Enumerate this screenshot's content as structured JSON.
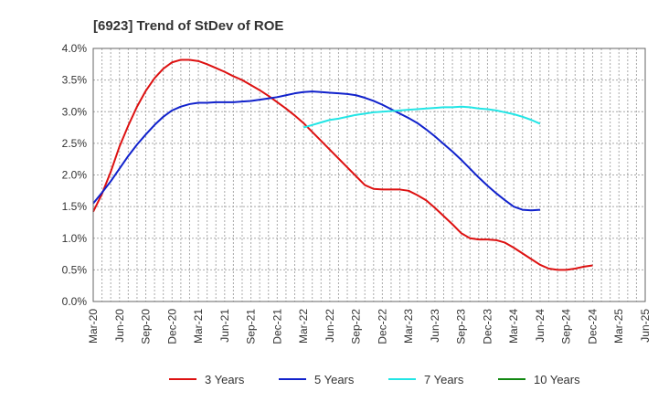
{
  "chart_data": {
    "type": "line",
    "title": "[6923]  Trend of StDev of ROE",
    "xlabel": "",
    "ylabel": "",
    "x_ticks": [
      "Mar-20",
      "Jun-20",
      "Sep-20",
      "Dec-20",
      "Mar-21",
      "Jun-21",
      "Sep-21",
      "Dec-21",
      "Mar-22",
      "Jun-22",
      "Sep-22",
      "Dec-22",
      "Mar-23",
      "Jun-23",
      "Sep-23",
      "Dec-23",
      "Mar-24",
      "Jun-24",
      "Sep-24",
      "Dec-24",
      "Mar-25",
      "Jun-25"
    ],
    "y_ticks": [
      "0.0%",
      "0.5%",
      "1.0%",
      "1.5%",
      "2.0%",
      "2.5%",
      "3.0%",
      "3.5%",
      "4.0%"
    ],
    "ylim": [
      0,
      4.0
    ],
    "grid": true,
    "legend_position": "bottom",
    "series": [
      {
        "name": "3 Years",
        "color": "#dd1111",
        "points": [
          [
            "Mar-20",
            1.42
          ],
          [
            "Apr-20",
            1.7
          ],
          [
            "May-20",
            2.05
          ],
          [
            "Jun-20",
            2.45
          ],
          [
            "Jul-20",
            2.78
          ],
          [
            "Aug-20",
            3.08
          ],
          [
            "Sep-20",
            3.33
          ],
          [
            "Oct-20",
            3.53
          ],
          [
            "Nov-20",
            3.68
          ],
          [
            "Dec-20",
            3.78
          ],
          [
            "Jan-21",
            3.82
          ],
          [
            "Feb-21",
            3.82
          ],
          [
            "Mar-21",
            3.8
          ],
          [
            "Apr-21",
            3.75
          ],
          [
            "May-21",
            3.69
          ],
          [
            "Jun-21",
            3.63
          ],
          [
            "Jul-21",
            3.56
          ],
          [
            "Aug-21",
            3.5
          ],
          [
            "Sep-21",
            3.42
          ],
          [
            "Oct-21",
            3.34
          ],
          [
            "Nov-21",
            3.25
          ],
          [
            "Dec-21",
            3.15
          ],
          [
            "Jan-22",
            3.05
          ],
          [
            "Feb-22",
            2.94
          ],
          [
            "Mar-22",
            2.82
          ],
          [
            "Apr-22",
            2.68
          ],
          [
            "May-22",
            2.54
          ],
          [
            "Jun-22",
            2.4
          ],
          [
            "Jul-22",
            2.26
          ],
          [
            "Aug-22",
            2.12
          ],
          [
            "Sep-22",
            1.98
          ],
          [
            "Oct-22",
            1.84
          ],
          [
            "Nov-22",
            1.78
          ],
          [
            "Dec-22",
            1.77
          ],
          [
            "Jan-23",
            1.77
          ],
          [
            "Feb-23",
            1.77
          ],
          [
            "Mar-23",
            1.75
          ],
          [
            "Apr-23",
            1.68
          ],
          [
            "May-23",
            1.6
          ],
          [
            "Jun-23",
            1.48
          ],
          [
            "Jul-23",
            1.35
          ],
          [
            "Aug-23",
            1.22
          ],
          [
            "Sep-23",
            1.08
          ],
          [
            "Oct-23",
            1.0
          ],
          [
            "Nov-23",
            0.98
          ],
          [
            "Dec-23",
            0.98
          ],
          [
            "Jan-24",
            0.97
          ],
          [
            "Feb-24",
            0.93
          ],
          [
            "Mar-24",
            0.85
          ],
          [
            "Apr-24",
            0.76
          ],
          [
            "May-24",
            0.67
          ],
          [
            "Jun-24",
            0.58
          ],
          [
            "Jul-24",
            0.52
          ],
          [
            "Aug-24",
            0.5
          ],
          [
            "Sep-24",
            0.5
          ],
          [
            "Oct-24",
            0.52
          ],
          [
            "Nov-24",
            0.55
          ],
          [
            "Dec-24",
            0.57
          ]
        ]
      },
      {
        "name": "5 Years",
        "color": "#1122cc",
        "points": [
          [
            "Mar-20",
            1.55
          ],
          [
            "Apr-20",
            1.72
          ],
          [
            "May-20",
            1.9
          ],
          [
            "Jun-20",
            2.1
          ],
          [
            "Jul-20",
            2.3
          ],
          [
            "Aug-20",
            2.48
          ],
          [
            "Sep-20",
            2.64
          ],
          [
            "Oct-20",
            2.79
          ],
          [
            "Nov-20",
            2.92
          ],
          [
            "Dec-20",
            3.02
          ],
          [
            "Jan-21",
            3.08
          ],
          [
            "Feb-21",
            3.12
          ],
          [
            "Mar-21",
            3.14
          ],
          [
            "Apr-21",
            3.14
          ],
          [
            "May-21",
            3.15
          ],
          [
            "Jun-21",
            3.15
          ],
          [
            "Jul-21",
            3.15
          ],
          [
            "Aug-21",
            3.16
          ],
          [
            "Sep-21",
            3.17
          ],
          [
            "Oct-21",
            3.19
          ],
          [
            "Nov-21",
            3.21
          ],
          [
            "Dec-21",
            3.23
          ],
          [
            "Jan-22",
            3.26
          ],
          [
            "Feb-22",
            3.29
          ],
          [
            "Mar-22",
            3.31
          ],
          [
            "Apr-22",
            3.32
          ],
          [
            "May-22",
            3.31
          ],
          [
            "Jun-22",
            3.3
          ],
          [
            "Jul-22",
            3.29
          ],
          [
            "Aug-22",
            3.28
          ],
          [
            "Sep-22",
            3.26
          ],
          [
            "Oct-22",
            3.22
          ],
          [
            "Nov-22",
            3.17
          ],
          [
            "Dec-22",
            3.11
          ],
          [
            "Jan-23",
            3.04
          ],
          [
            "Feb-23",
            2.97
          ],
          [
            "Mar-23",
            2.9
          ],
          [
            "Apr-23",
            2.82
          ],
          [
            "May-23",
            2.72
          ],
          [
            "Jun-23",
            2.61
          ],
          [
            "Jul-23",
            2.49
          ],
          [
            "Aug-23",
            2.37
          ],
          [
            "Sep-23",
            2.24
          ],
          [
            "Oct-23",
            2.1
          ],
          [
            "Nov-23",
            1.96
          ],
          [
            "Dec-23",
            1.83
          ],
          [
            "Jan-24",
            1.71
          ],
          [
            "Feb-24",
            1.6
          ],
          [
            "Mar-24",
            1.5
          ],
          [
            "Apr-24",
            1.45
          ],
          [
            "May-24",
            1.44
          ],
          [
            "Jun-24",
            1.45
          ]
        ]
      },
      {
        "name": "7 Years",
        "color": "#22e5e5",
        "points": [
          [
            "Mar-22",
            2.75
          ],
          [
            "Apr-22",
            2.79
          ],
          [
            "May-22",
            2.83
          ],
          [
            "Jun-22",
            2.87
          ],
          [
            "Jul-22",
            2.89
          ],
          [
            "Aug-22",
            2.92
          ],
          [
            "Sep-22",
            2.95
          ],
          [
            "Oct-22",
            2.97
          ],
          [
            "Nov-22",
            2.99
          ],
          [
            "Dec-22",
            3.0
          ],
          [
            "Jan-23",
            3.01
          ],
          [
            "Feb-23",
            3.02
          ],
          [
            "Mar-23",
            3.03
          ],
          [
            "Apr-23",
            3.04
          ],
          [
            "May-23",
            3.05
          ],
          [
            "Jun-23",
            3.06
          ],
          [
            "Jul-23",
            3.07
          ],
          [
            "Aug-23",
            3.07
          ],
          [
            "Sep-23",
            3.08
          ],
          [
            "Oct-23",
            3.07
          ],
          [
            "Nov-23",
            3.05
          ],
          [
            "Dec-23",
            3.04
          ],
          [
            "Jan-24",
            3.02
          ],
          [
            "Feb-24",
            2.99
          ],
          [
            "Mar-24",
            2.96
          ],
          [
            "Apr-24",
            2.92
          ],
          [
            "May-24",
            2.87
          ],
          [
            "Jun-24",
            2.81
          ]
        ]
      },
      {
        "name": "10 Years",
        "color": "#118811",
        "points": []
      }
    ]
  }
}
